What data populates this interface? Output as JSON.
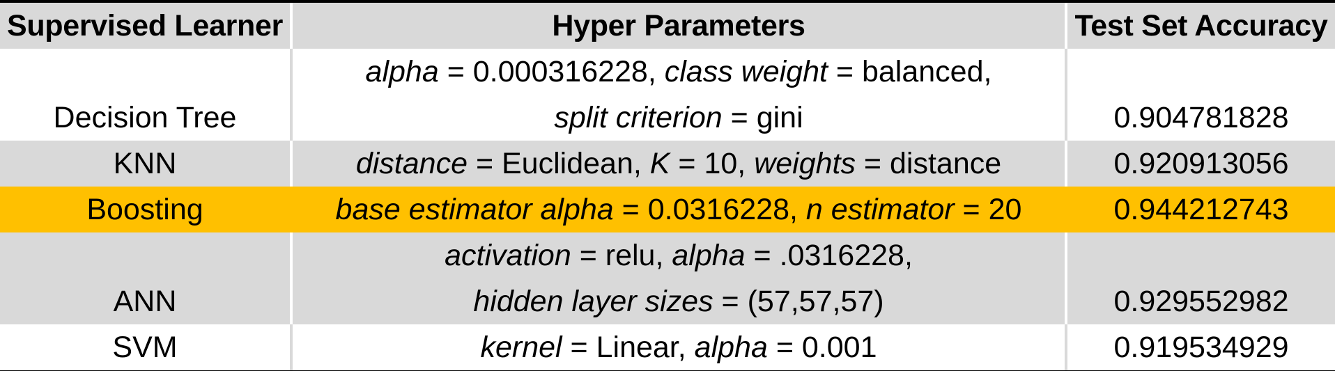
{
  "table": {
    "headers": {
      "learner": "Supervised Learner",
      "params": "Hyper Parameters",
      "accuracy": "Test Set Accuracy"
    },
    "rows": [
      {
        "learner": "Decision Tree",
        "accuracy": "0.904781828",
        "lines": [
          [
            {
              "name": "alpha",
              "value": " = 0.000316228,"
            },
            {
              "name": "class weight",
              "value": " = balanced,"
            }
          ],
          [
            {
              "name": "split criterion",
              "value": " = gini"
            }
          ]
        ]
      },
      {
        "learner": "KNN",
        "accuracy": "0.920913056",
        "lines": [
          [
            {
              "name": "distance",
              "value": " = Euclidean,"
            },
            {
              "name": "K",
              "value": " = 10,"
            },
            {
              "name": "weights",
              "value": " = distance"
            }
          ]
        ]
      },
      {
        "learner": "Boosting",
        "accuracy": "0.944212743",
        "lines": [
          [
            {
              "name": "base estimator alpha",
              "value": " = 0.0316228,"
            },
            {
              "name": "n estimator",
              "value": " = 20"
            }
          ]
        ]
      },
      {
        "learner": "ANN",
        "accuracy": "0.929552982",
        "lines": [
          [
            {
              "name": "activation",
              "value": " = relu,"
            },
            {
              "name": "alpha",
              "value": " = .0316228,"
            }
          ],
          [
            {
              "name": "hidden layer sizes",
              "value": " = (57,57,57)"
            }
          ]
        ]
      },
      {
        "learner": "SVM",
        "accuracy": "0.919534929",
        "lines": [
          [
            {
              "name": "kernel",
              "value": " = Linear,"
            },
            {
              "name": "alpha",
              "value": " = 0.001"
            }
          ]
        ]
      }
    ]
  },
  "colors": {
    "header_bg": "#d9d9d9",
    "row_white": "#ffffff",
    "row_grey": "#d9d9d9",
    "row_highlight": "#ffc000",
    "frame": "#000000"
  }
}
